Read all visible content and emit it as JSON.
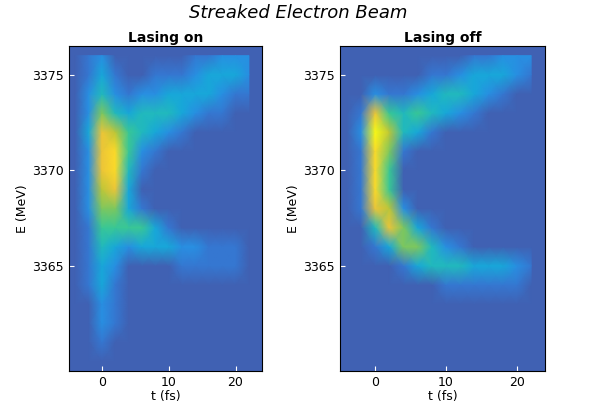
{
  "title": "Streaked Electron Beam",
  "chart_data": [
    {
      "type": "heatmap",
      "title": "Lasing on",
      "x_label": "t (fs)",
      "y_label": "E (MeV)",
      "xlim": [
        -5,
        24
      ],
      "ylim": [
        3359.5,
        3376.5
      ],
      "xticks": [
        0,
        10,
        20
      ],
      "yticks": [
        3365,
        3370,
        3375
      ],
      "x": [
        -4,
        -2,
        0,
        2,
        4,
        6,
        8,
        10,
        12,
        14,
        16,
        18,
        20,
        22
      ],
      "y": [
        3360,
        3361,
        3362,
        3363,
        3364,
        3365,
        3366,
        3367,
        3368,
        3369,
        3370,
        3371,
        3372,
        3373,
        3374,
        3375,
        3376
      ],
      "cells": [
        [
          0,
          0,
          0,
          0,
          0,
          0,
          0,
          0,
          0,
          0,
          0,
          0,
          0,
          0
        ],
        [
          0,
          0,
          1,
          0,
          0,
          0,
          0,
          0,
          0,
          0,
          0,
          0,
          0,
          0
        ],
        [
          0,
          0,
          2,
          1,
          0,
          0,
          0,
          0,
          0,
          0,
          0,
          0,
          0,
          0
        ],
        [
          0,
          0,
          2,
          1,
          0,
          0,
          0,
          0,
          0,
          0,
          0,
          0,
          0,
          0
        ],
        [
          0,
          1,
          3,
          1,
          0,
          0,
          0,
          0,
          0,
          0,
          0,
          0,
          0,
          0
        ],
        [
          0,
          1,
          3,
          2,
          0,
          0,
          0,
          0,
          1,
          1,
          1,
          1,
          1,
          0
        ],
        [
          0,
          1,
          4,
          3,
          2,
          3,
          3,
          3,
          2,
          2,
          1,
          1,
          1,
          0
        ],
        [
          0,
          1,
          5,
          5,
          5,
          5,
          3,
          1,
          0,
          0,
          0,
          0,
          0,
          0
        ],
        [
          0,
          2,
          6,
          6,
          3,
          1,
          0,
          0,
          0,
          0,
          0,
          0,
          0,
          0
        ],
        [
          0,
          2,
          7,
          8,
          3,
          0,
          0,
          0,
          0,
          0,
          0,
          0,
          0,
          0
        ],
        [
          0,
          2,
          8,
          9,
          4,
          1,
          0,
          0,
          0,
          0,
          0,
          0,
          0,
          0
        ],
        [
          0,
          2,
          8,
          9,
          5,
          2,
          1,
          0,
          0,
          0,
          0,
          0,
          0,
          0
        ],
        [
          0,
          3,
          8,
          7,
          5,
          4,
          3,
          2,
          1,
          0,
          0,
          0,
          0,
          0
        ],
        [
          0,
          2,
          6,
          4,
          3,
          4,
          4,
          4,
          3,
          2,
          1,
          1,
          0,
          0
        ],
        [
          0,
          2,
          4,
          2,
          1,
          2,
          2,
          3,
          3,
          3,
          3,
          2,
          1,
          1
        ],
        [
          0,
          1,
          3,
          1,
          0,
          0,
          1,
          1,
          1,
          2,
          3,
          3,
          3,
          2
        ],
        [
          0,
          1,
          2,
          0,
          0,
          0,
          0,
          0,
          0,
          1,
          1,
          2,
          2,
          2
        ]
      ]
    },
    {
      "type": "heatmap",
      "title": "Lasing off",
      "x_label": "t (fs)",
      "y_label": "E (MeV)",
      "xlim": [
        -5,
        24
      ],
      "ylim": [
        3359.5,
        3376.5
      ],
      "xticks": [
        0,
        10,
        20
      ],
      "yticks": [
        3365,
        3370,
        3375
      ],
      "x": [
        -4,
        -2,
        0,
        2,
        4,
        6,
        8,
        10,
        12,
        14,
        16,
        18,
        20,
        22
      ],
      "y": [
        3360,
        3361,
        3362,
        3363,
        3364,
        3365,
        3366,
        3367,
        3368,
        3369,
        3370,
        3371,
        3372,
        3373,
        3374,
        3375,
        3376
      ],
      "cells": [
        [
          0,
          0,
          0,
          0,
          0,
          0,
          0,
          0,
          0,
          0,
          0,
          0,
          0,
          0
        ],
        [
          0,
          0,
          0,
          0,
          0,
          0,
          0,
          0,
          0,
          0,
          0,
          0,
          0,
          0
        ],
        [
          0,
          0,
          0,
          0,
          0,
          0,
          0,
          0,
          0,
          0,
          0,
          0,
          0,
          0
        ],
        [
          0,
          0,
          0,
          0,
          0,
          0,
          0,
          0,
          0,
          0,
          0,
          0,
          0,
          0
        ],
        [
          0,
          0,
          0,
          0,
          0,
          0,
          0,
          1,
          1,
          1,
          1,
          1,
          1,
          0
        ],
        [
          0,
          0,
          0,
          0,
          1,
          3,
          4,
          4,
          4,
          3,
          3,
          3,
          2,
          1
        ],
        [
          0,
          0,
          1,
          3,
          6,
          6,
          4,
          2,
          1,
          0,
          0,
          0,
          0,
          0
        ],
        [
          0,
          0,
          4,
          8,
          6,
          3,
          1,
          0,
          0,
          0,
          0,
          0,
          0,
          0
        ],
        [
          0,
          1,
          8,
          7,
          2,
          0,
          0,
          0,
          0,
          0,
          0,
          0,
          0,
          0
        ],
        [
          0,
          1,
          9,
          5,
          0,
          0,
          0,
          0,
          0,
          0,
          0,
          0,
          0,
          0
        ],
        [
          0,
          1,
          9,
          5,
          0,
          0,
          0,
          0,
          0,
          0,
          0,
          0,
          0,
          0
        ],
        [
          0,
          1,
          9,
          6,
          1,
          0,
          0,
          0,
          0,
          0,
          0,
          0,
          0,
          0
        ],
        [
          0,
          2,
          10,
          7,
          4,
          3,
          1,
          0,
          0,
          0,
          0,
          0,
          0,
          0
        ],
        [
          0,
          1,
          8,
          5,
          4,
          5,
          4,
          3,
          2,
          1,
          0,
          0,
          0,
          0
        ],
        [
          0,
          0,
          2,
          1,
          1,
          2,
          3,
          4,
          4,
          3,
          2,
          1,
          0,
          0
        ],
        [
          0,
          0,
          0,
          0,
          0,
          0,
          1,
          1,
          2,
          3,
          3,
          3,
          2,
          1
        ],
        [
          0,
          0,
          0,
          0,
          0,
          0,
          0,
          0,
          0,
          1,
          1,
          2,
          2,
          2
        ]
      ]
    }
  ]
}
